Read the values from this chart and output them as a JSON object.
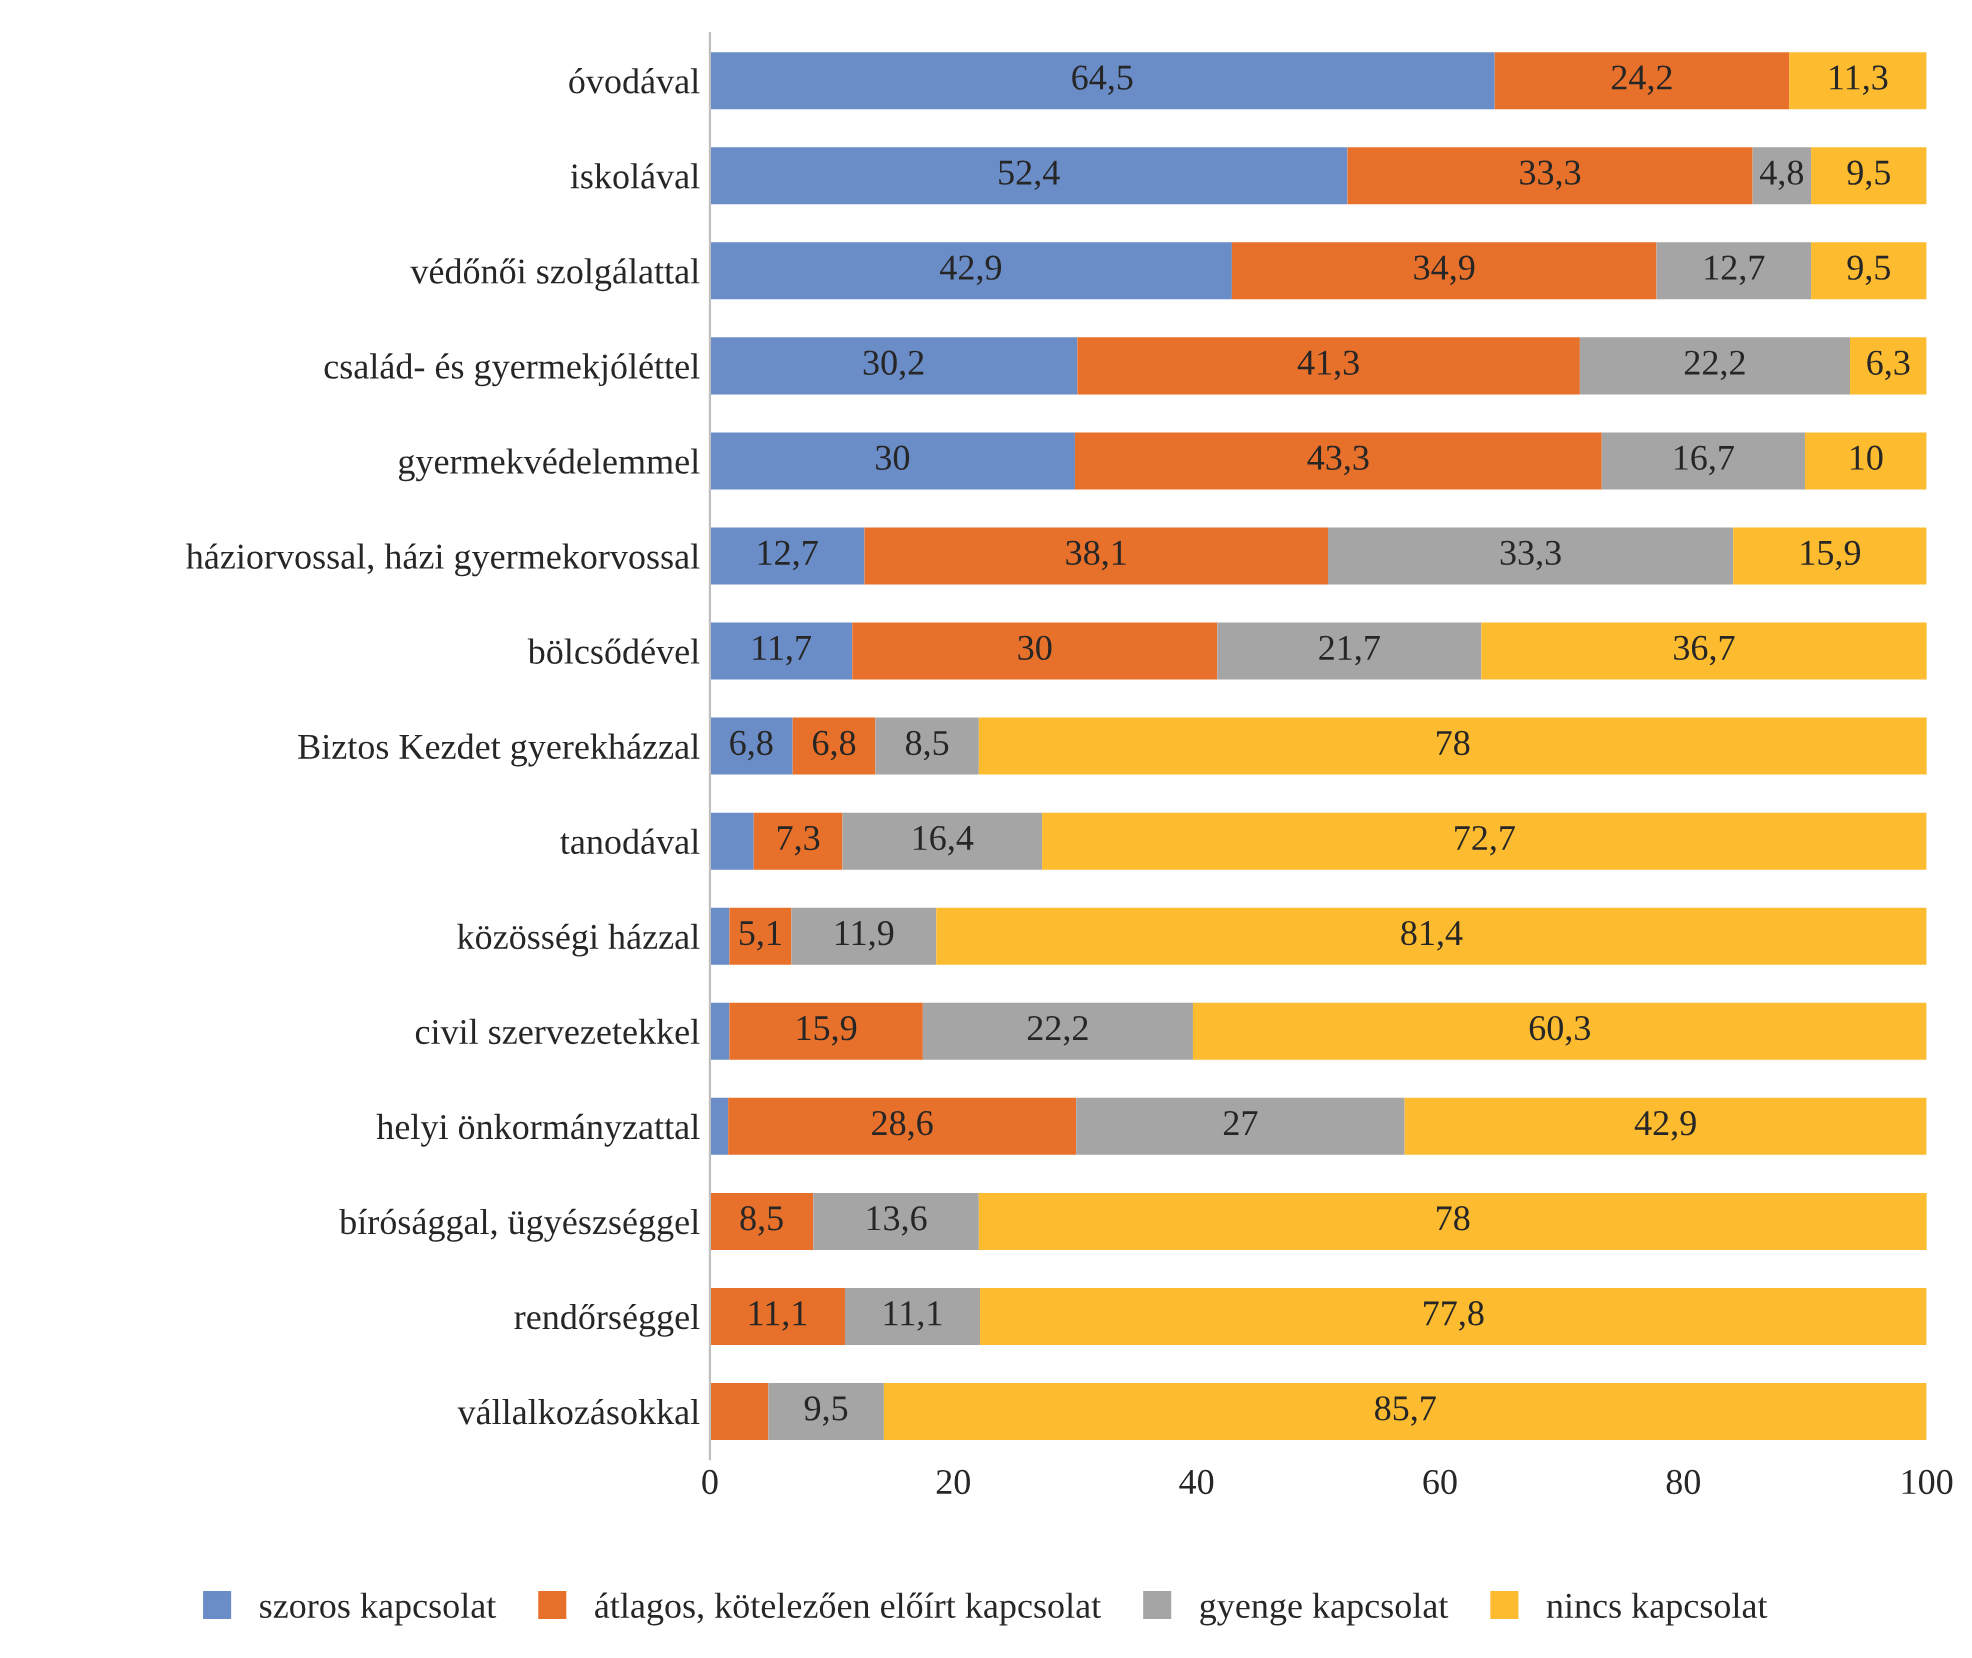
{
  "chart_data": {
    "type": "bar",
    "orientation": "horizontal",
    "stacked": true,
    "categories": [
      "óvodával",
      "iskolával",
      "védőnői szolgálattal",
      "család- és gyermekjóléttel",
      "gyermekvédelemmel",
      "háziorvossal, házi gyermekorvossal",
      "bölcsődével",
      "Biztos Kezdet gyerekházzal",
      "tanodával",
      "közösségi házzal",
      "civil szervezetekkel",
      "helyi önkormányzattal",
      "bírósággal, ügyészséggel",
      "rendőrséggel",
      "vállalkozásokkal"
    ],
    "series": [
      {
        "name": "szoros kapcsolat",
        "color": "#6a8cc7",
        "values": [
          64.5,
          52.4,
          42.9,
          30.2,
          30,
          12.7,
          11.7,
          6.8,
          3.6,
          1.6,
          1.6,
          1.5,
          0,
          0,
          0
        ],
        "value_labels": [
          "64,5",
          "52,4",
          "42,9",
          "30,2",
          "30",
          "12,7",
          "11,7",
          "6,8",
          null,
          null,
          null,
          null,
          null,
          null,
          null
        ]
      },
      {
        "name": "átlagos, kötelezően előírt kapcsolat",
        "color": "#e7702a",
        "values": [
          24.2,
          33.3,
          34.9,
          41.3,
          43.3,
          38.1,
          30,
          6.8,
          7.3,
          5.1,
          15.9,
          28.6,
          8.5,
          11.1,
          4.8
        ],
        "value_labels": [
          "24,2",
          "33,3",
          "34,9",
          "41,3",
          "43,3",
          "38,1",
          "30",
          "6,8",
          "7,3",
          "5,1",
          "15,9",
          "28,6",
          "8,5",
          "11,1",
          null
        ]
      },
      {
        "name": "gyenge kapcsolat",
        "color": "#a5a5a5",
        "values": [
          0,
          4.8,
          12.7,
          22.2,
          16.7,
          33.3,
          21.7,
          8.5,
          16.4,
          11.9,
          22.2,
          27,
          13.6,
          11.1,
          9.5
        ],
        "value_labels": [
          null,
          "4,8",
          "12,7",
          "22,2",
          "16,7",
          "33,3",
          "21,7",
          "8,5",
          "16,4",
          "11,9",
          "22,2",
          "27",
          "13,6",
          "11,1",
          "9,5"
        ]
      },
      {
        "name": "nincs kapcsolat",
        "color": "#fdbb2f",
        "values": [
          11.3,
          9.5,
          9.5,
          6.3,
          10,
          15.9,
          36.7,
          78,
          72.7,
          81.4,
          60.3,
          42.9,
          78,
          77.8,
          85.7
        ],
        "value_labels": [
          "11,3",
          "9,5",
          "9,5",
          "6,3",
          "10",
          "15,9",
          "36,7",
          "78",
          "72,7",
          "81,4",
          "60,3",
          "42,9",
          "78",
          "77,8",
          "85,7"
        ]
      }
    ],
    "xlim": [
      0,
      100
    ],
    "xticks": [
      0,
      20,
      40,
      60,
      80,
      100
    ],
    "grid": false,
    "legend": "bottom"
  }
}
